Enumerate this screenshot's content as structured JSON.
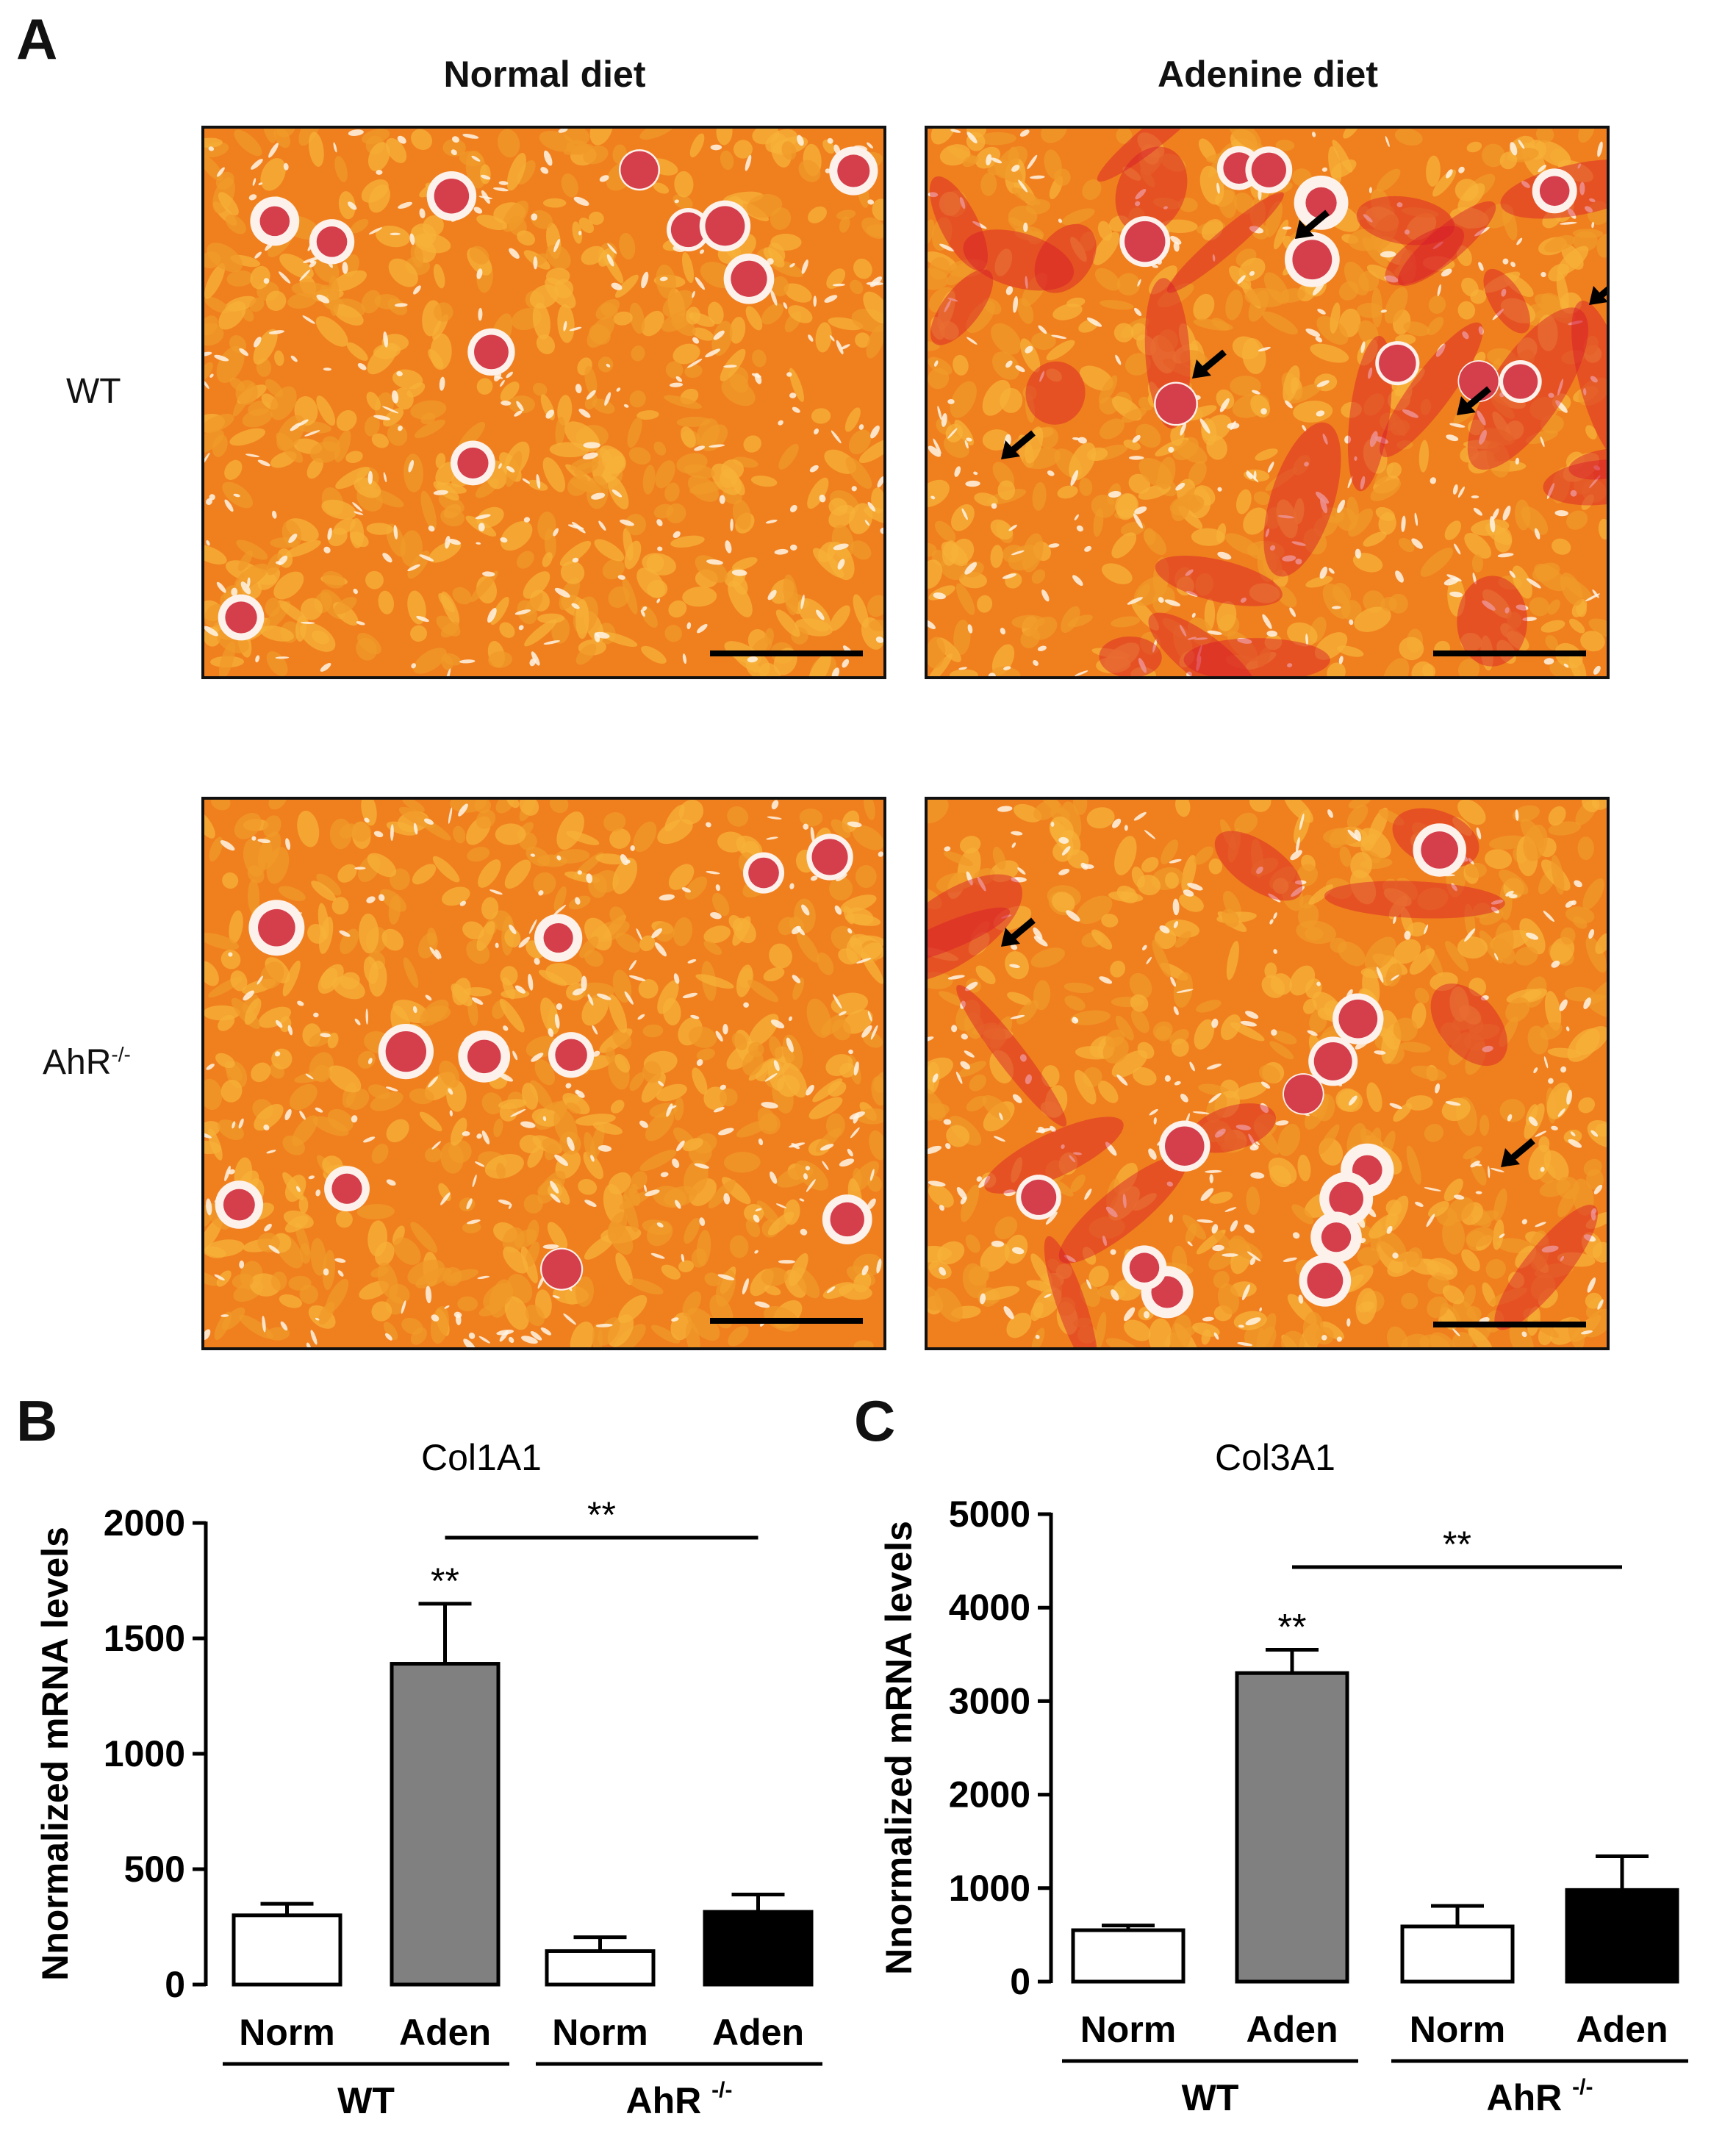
{
  "figure": {
    "panel_a": {
      "letter": "A",
      "columns": [
        "Normal diet",
        "Adenine diet"
      ],
      "rows": [
        {
          "label": "WT",
          "sup": ""
        },
        {
          "label": "AhR",
          "sup": "-/-"
        }
      ],
      "images": [
        {
          "row": "WT",
          "diet": "Normal diet",
          "stain": "sirius-red-histology",
          "arrows": 0
        },
        {
          "row": "WT",
          "diet": "Adenine diet",
          "stain": "sirius-red-histology",
          "arrows": 5
        },
        {
          "row": "AhR-/-",
          "diet": "Normal diet",
          "stain": "sirius-red-histology",
          "arrows": 0
        },
        {
          "row": "AhR-/-",
          "diet": "Adenine diet",
          "stain": "sirius-red-histology",
          "arrows": 2
        }
      ],
      "colors": {
        "tissue": "#f0801e",
        "fibrosis": "#d8182a",
        "lumen": "#fff4e6",
        "scale_bar": "#000000"
      }
    },
    "panel_b": {
      "letter": "B"
    },
    "panel_c": {
      "letter": "C"
    }
  },
  "chart_data": [
    {
      "type": "bar",
      "title": "Col1A1",
      "ylabel": "Nnormalized mRNA levels",
      "ylim": [
        0,
        2000
      ],
      "yticks": [
        "0",
        "500",
        "1000",
        "1500",
        "2000"
      ],
      "categories": [
        "Norm",
        "Aden",
        "Norm",
        "Aden"
      ],
      "groups": [
        {
          "label": "WT",
          "sup": ""
        },
        {
          "label": "AhR ",
          "sup": "-/-"
        }
      ],
      "values": [
        300,
        1390,
        145,
        315
      ],
      "errors": [
        50,
        260,
        60,
        75
      ],
      "fills": [
        "#ffffff",
        "#808080",
        "#ffffff",
        "#000000"
      ],
      "significance": [
        {
          "over": 1,
          "text": "**"
        }
      ],
      "comparison": {
        "from": 1,
        "to": 3,
        "text": "**"
      }
    },
    {
      "type": "bar",
      "title": "Col3A1",
      "ylabel": "Nnormalized mRNA levels",
      "ylim": [
        0,
        5000
      ],
      "yticks": [
        "0",
        "1000",
        "2000",
        "3000",
        "4000",
        "5000"
      ],
      "categories": [
        "Norm",
        "Aden",
        "Norm",
        "Aden"
      ],
      "groups": [
        {
          "label": "WT",
          "sup": ""
        },
        {
          "label": "AhR ",
          "sup": "-/-"
        }
      ],
      "values": [
        550,
        3300,
        590,
        980
      ],
      "errors": [
        50,
        250,
        220,
        360
      ],
      "fills": [
        "#ffffff",
        "#808080",
        "#ffffff",
        "#000000"
      ],
      "significance": [
        {
          "over": 1,
          "text": "**"
        }
      ],
      "comparison": {
        "from": 1,
        "to": 3,
        "text": "**"
      }
    }
  ]
}
